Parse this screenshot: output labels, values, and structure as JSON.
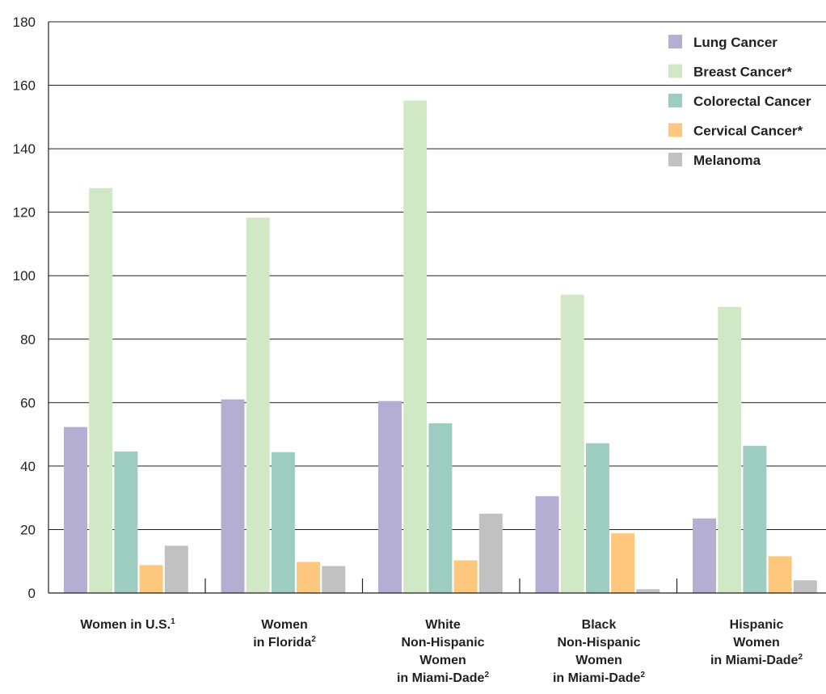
{
  "chart_data": {
    "type": "bar",
    "ylim": [
      0,
      180
    ],
    "yticks": [
      0,
      20,
      40,
      60,
      80,
      100,
      120,
      140,
      160,
      180
    ],
    "grid": true,
    "legend_position": "top-right",
    "categories": [
      {
        "lines": [
          "Women in U.S."
        ],
        "sup": "1"
      },
      {
        "lines": [
          "Women",
          "in Florida"
        ],
        "sup": "2"
      },
      {
        "lines": [
          "White",
          "Non-Hispanic",
          "Women",
          "in Miami-Dade"
        ],
        "sup": "2"
      },
      {
        "lines": [
          "Black",
          "Non-Hispanic",
          "Women",
          "in Miami-Dade"
        ],
        "sup": "2"
      },
      {
        "lines": [
          "Hispanic",
          "Women",
          "in Miami-Dade"
        ],
        "sup": "2"
      }
    ],
    "series": [
      {
        "name": "Lung Cancer",
        "color": "#b3aed2",
        "values": [
          52.3,
          61.0,
          60.5,
          30.5,
          23.5
        ]
      },
      {
        "name": "Breast Cancer*",
        "color": "#d1e8c6",
        "values": [
          127.6,
          118.3,
          155.2,
          94.0,
          90.2
        ]
      },
      {
        "name": "Colorectal Cancer",
        "color": "#9dcdc0",
        "values": [
          44.6,
          44.4,
          53.5,
          47.2,
          46.4
        ]
      },
      {
        "name": "Cervical Cancer*",
        "color": "#fdc77d",
        "values": [
          8.8,
          9.8,
          10.3,
          18.8,
          11.6
        ]
      },
      {
        "name": "Melanoma",
        "color": "#c1c1c1",
        "values": [
          14.9,
          8.5,
          25.0,
          1.2,
          4.0
        ]
      }
    ]
  }
}
